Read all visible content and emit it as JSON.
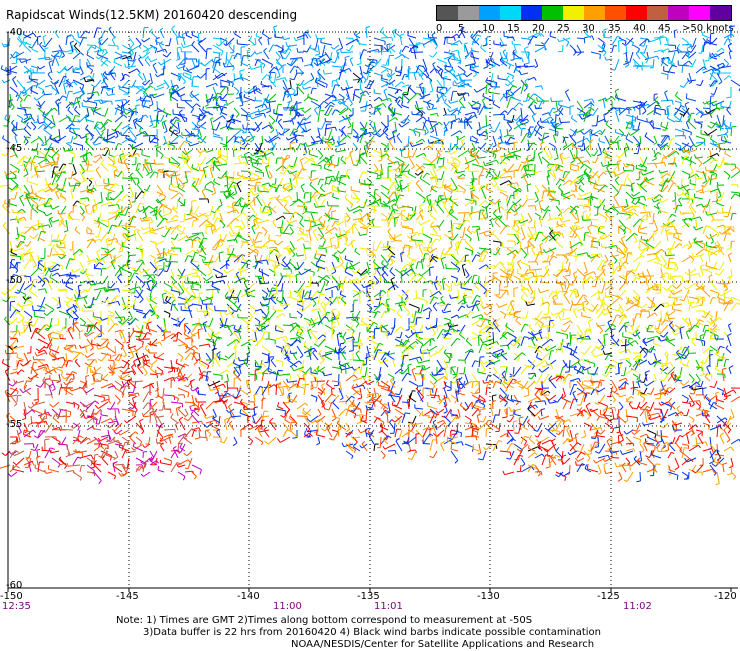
{
  "title": "Rapidscat Winds(12.5KM) 20160420 descending",
  "legend": {
    "colors": [
      "#555555",
      "#9a9a9a",
      "#00a0ff",
      "#00d8f8",
      "#0030f0",
      "#00c000",
      "#f0f000",
      "#ffa000",
      "#ff5000",
      "#ff0000",
      "#c06040",
      "#c000c0",
      "#ff00ff",
      "#6000a0"
    ],
    "labels": [
      "0",
      "5",
      "10",
      "15",
      "20",
      "25",
      "30",
      "35",
      "40",
      "45",
      ">50 knots"
    ]
  },
  "axes": {
    "lat_labels": [
      "-40",
      "-45",
      "-50",
      "-55",
      "-60"
    ],
    "lon_labels": [
      "-150",
      "-145",
      "-140",
      "-135",
      "-130",
      "-125",
      "-120"
    ],
    "time_labels": [
      "12:35",
      "11:00",
      "11:01",
      "11:02"
    ]
  },
  "notes": {
    "line1": "Note: 1) Times are GMT 2)Times along bottom correspond to measurement at -50S",
    "line2": "3)Data buffer is 22 hrs from 20160420 4) Black wind barbs indicate possible contamination",
    "line3": "NOAA/NESDIS/Center for Satellite Applications and Research"
  }
}
